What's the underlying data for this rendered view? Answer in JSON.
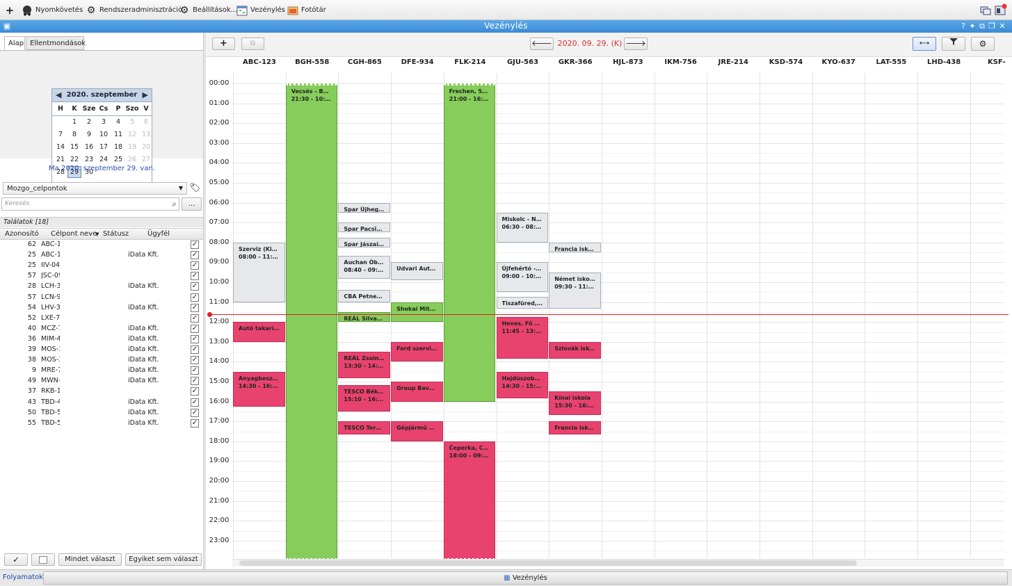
{
  "menu": {
    "items": [
      {
        "label": "",
        "icon": "plus-icon"
      },
      {
        "label": "Nyomkövetés",
        "icon": "truck-icon"
      },
      {
        "label": "Rendszeradminisztráció",
        "icon": "gears-icon"
      },
      {
        "label": "Beállítások...",
        "icon": "gear-icon"
      },
      {
        "label": "Vezénylés",
        "icon": "calendar-icon"
      },
      {
        "label": "Fotótár",
        "icon": "photo-icon"
      }
    ]
  },
  "window": {
    "title": "Vezénylés"
  },
  "left": {
    "tabs": [
      "Alap",
      "Ellentmondások"
    ],
    "calendar": {
      "month_label": "2020. szeptember",
      "days_of_week": [
        "H",
        "K",
        "Sze",
        "Cs",
        "P",
        "Szo",
        "V"
      ],
      "weeks": [
        [
          "",
          "1",
          "2",
          "3",
          "4",
          "5",
          "6"
        ],
        [
          "7",
          "8",
          "9",
          "10",
          "11",
          "12",
          "13"
        ],
        [
          "14",
          "15",
          "16",
          "17",
          "18",
          "19",
          "20"
        ],
        [
          "21",
          "22",
          "23",
          "24",
          "25",
          "26",
          "27"
        ],
        [
          "28",
          "29",
          "30",
          "",
          "",
          "",
          ""
        ]
      ],
      "selected": "29",
      "today_text": "Ma 2020. szeptember 29. van."
    },
    "dropdown_value": "Mozgo_celpontok",
    "search_placeholder": "Keresés",
    "more_button": "...",
    "results_label": "Találatok [18]",
    "columns": [
      "Azonosító",
      "Célpont neve",
      "Státusz",
      "Ügyfél"
    ],
    "rows": [
      {
        "id": "62",
        "name": "ABC-1",
        "client": ""
      },
      {
        "id": "25",
        "name": "ABC-1",
        "client": "iData Kft."
      },
      {
        "id": "25",
        "name": "IIV-04",
        "client": ""
      },
      {
        "id": "57",
        "name": "JSC-09",
        "client": ""
      },
      {
        "id": "28",
        "name": "LCH-3",
        "client": "iData Kft."
      },
      {
        "id": "57",
        "name": "LCN-9",
        "client": ""
      },
      {
        "id": "54",
        "name": "LHV-3",
        "client": "iData Kft."
      },
      {
        "id": "52",
        "name": "LXE-7",
        "client": ""
      },
      {
        "id": "40",
        "name": "MCZ-7",
        "client": "iData Kft."
      },
      {
        "id": "36",
        "name": "MIM-4",
        "client": "iData Kft."
      },
      {
        "id": "39",
        "name": "MOS-3",
        "client": "iData Kft."
      },
      {
        "id": "38",
        "name": "MOS-3",
        "client": "iData Kft."
      },
      {
        "id": "9",
        "name": "MRE-7",
        "client": "iData Kft."
      },
      {
        "id": "49",
        "name": "MWN-",
        "client": "iData Kft."
      },
      {
        "id": "37",
        "name": "RKB-1",
        "client": ""
      },
      {
        "id": "43",
        "name": "TBD-4",
        "client": "iData Kft."
      },
      {
        "id": "50",
        "name": "TBD-5",
        "client": "iData Kft."
      },
      {
        "id": "55",
        "name": "TBD-5",
        "client": "iData Kft."
      }
    ],
    "check_symbol": "✓",
    "select_all_label": "Mindet választ",
    "select_none_label": "Egyiket sem választ"
  },
  "schedule": {
    "date_label": "2020. 09. 29. (K)",
    "columns": [
      "ABC-123",
      "BGH-558",
      "CGH-865",
      "DFE-934",
      "FLK-214",
      "GJU-563",
      "GKR-366",
      "HJL-873",
      "IKM-756",
      "JRE-214",
      "KSD-574",
      "KYO-637",
      "LAT-555",
      "LHD-438",
      "KSF-"
    ],
    "hours": [
      "00:00",
      "01:00",
      "02:00",
      "03:00",
      "04:00",
      "05:00",
      "06:00",
      "07:00",
      "08:00",
      "09:00",
      "10:00",
      "11:00",
      "12:00",
      "13:00",
      "14:00",
      "15:00",
      "16:00",
      "17:00",
      "18:00",
      "19:00",
      "20:00",
      "21:00",
      "22:00",
      "23:00"
    ],
    "current_time": 11.6,
    "events": [
      {
        "col": 0,
        "start": 8.0,
        "end": 11.0,
        "kind": "grey",
        "title": "Szerviz (Kiss ...",
        "time": "08:00 - 11:00"
      },
      {
        "col": 0,
        "start": 12.0,
        "end": 13.0,
        "kind": "pink",
        "title": "Autó takarítá...",
        "time": ""
      },
      {
        "col": 0,
        "start": 14.5,
        "end": 16.25,
        "kind": "pink",
        "title": "Anyagbeszer...",
        "time": "14:30 - 16:15"
      },
      {
        "col": 1,
        "start": 0.0,
        "end": 24.0,
        "kind": "green",
        "title": "Vecsés - Berlin",
        "time": "21:30 - 10:30"
      },
      {
        "col": 2,
        "start": 6.0,
        "end": 6.5,
        "kind": "grey",
        "title": "Spar Újhegyi ...",
        "time": ""
      },
      {
        "col": 2,
        "start": 7.0,
        "end": 7.5,
        "kind": "grey",
        "title": "Spar Pacsirta...",
        "time": ""
      },
      {
        "col": 2,
        "start": 7.75,
        "end": 8.25,
        "kind": "grey",
        "title": "Spar Jászai M...",
        "time": ""
      },
      {
        "col": 2,
        "start": 8.67,
        "end": 9.83,
        "kind": "grey",
        "title": "Auchan Óbuda",
        "time": "08:40 - 09:50"
      },
      {
        "col": 2,
        "start": 10.4,
        "end": 11.0,
        "kind": "grey",
        "title": "CBA Petnehá...",
        "time": ""
      },
      {
        "col": 2,
        "start": 11.5,
        "end": 12.0,
        "kind": "green",
        "title": "REÁL Silvanu...",
        "time": ""
      },
      {
        "col": 2,
        "start": 13.5,
        "end": 14.83,
        "kind": "pink",
        "title": "REÁL Zsolnay...",
        "time": "13:30 - 14:50"
      },
      {
        "col": 2,
        "start": 15.17,
        "end": 16.5,
        "kind": "pink",
        "title": "TESCO Béke ...",
        "time": "15:10 - 16:30"
      },
      {
        "col": 2,
        "start": 17.0,
        "end": 17.67,
        "kind": "pink",
        "title": "TESCO Teréz ...",
        "time": ""
      },
      {
        "col": 3,
        "start": 9.0,
        "end": 9.9,
        "kind": "grey",
        "title": "Udvari Auto...",
        "time": ""
      },
      {
        "col": 3,
        "start": 11.0,
        "end": 12.0,
        "kind": "green",
        "title": "Shokai Mitsu...",
        "time": ""
      },
      {
        "col": 3,
        "start": 13.0,
        "end": 14.0,
        "kind": "pink",
        "title": "Ford szerviz - ...",
        "time": ""
      },
      {
        "col": 3,
        "start": 15.0,
        "end": 16.0,
        "kind": "pink",
        "title": "Group Bavari...",
        "time": ""
      },
      {
        "col": 3,
        "start": 17.0,
        "end": 18.0,
        "kind": "pink",
        "title": "Gépjármű Sz...",
        "time": ""
      },
      {
        "col": 4,
        "start": 0.0,
        "end": 16.0,
        "kind": "green",
        "title": "Frechen, 502...",
        "time": "21:00 - 16:00"
      },
      {
        "col": 4,
        "start": 18.0,
        "end": 24.0,
        "kind": "pink",
        "title": "Čeperka, Cse...",
        "time": "18:00 - 09:00"
      },
      {
        "col": 5,
        "start": 6.5,
        "end": 8.0,
        "kind": "grey",
        "title": "Miskolc - Nag...",
        "time": "06:30 - 08:00"
      },
      {
        "col": 5,
        "start": 9.0,
        "end": 10.5,
        "kind": "grey",
        "title": "Újfehértó - Ti...",
        "time": "09:00 - 10:30"
      },
      {
        "col": 5,
        "start": 10.75,
        "end": 11.33,
        "kind": "grey",
        "title": "Tiszafüred, H...",
        "time": ""
      },
      {
        "col": 5,
        "start": 11.75,
        "end": 13.83,
        "kind": "pink",
        "title": "Heves, Fő út ...",
        "time": "11:45 - 13:50"
      },
      {
        "col": 5,
        "start": 14.5,
        "end": 15.83,
        "kind": "pink",
        "title": "Hajdúszobosz...",
        "time": "14:30 - 15:50"
      },
      {
        "col": 6,
        "start": 8.0,
        "end": 8.5,
        "kind": "grey",
        "title": "Francia iskola",
        "time": ""
      },
      {
        "col": 6,
        "start": 9.5,
        "end": 11.33,
        "kind": "grey",
        "title": "Német iskola",
        "time": "09:30 - 11:20"
      },
      {
        "col": 6,
        "start": 13.0,
        "end": 13.83,
        "kind": "pink",
        "title": "Szlovák iskola",
        "time": ""
      },
      {
        "col": 6,
        "start": 15.5,
        "end": 16.67,
        "kind": "pink",
        "title": "Kínai iskola",
        "time": "15:30 - 16:40"
      },
      {
        "col": 6,
        "start": 17.0,
        "end": 17.67,
        "kind": "pink",
        "title": "Francia iskola",
        "time": ""
      }
    ]
  },
  "bottom": {
    "process_label": "Folyamatok",
    "task_label": "Vezénylés"
  }
}
